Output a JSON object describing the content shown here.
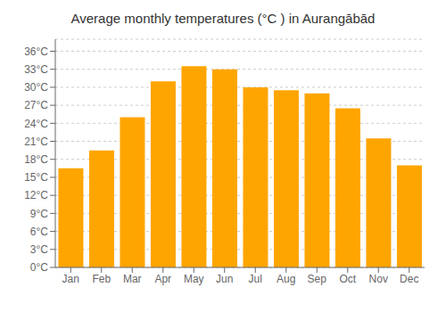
{
  "chart_data": {
    "type": "bar",
    "title": "Average monthly temperatures (°C ) in Aurangābād",
    "categories": [
      "Jan",
      "Feb",
      "Mar",
      "Apr",
      "May",
      "Jun",
      "Jul",
      "Aug",
      "Sep",
      "Oct",
      "Nov",
      "Dec"
    ],
    "values": [
      16.5,
      19.5,
      25.0,
      31.0,
      33.5,
      33.0,
      30.0,
      29.5,
      29.0,
      26.5,
      21.5,
      17.0
    ],
    "color": "#FFA500",
    "ylim": [
      0,
      38
    ],
    "yticks": [
      {
        "value": 0,
        "label": "0°C"
      },
      {
        "value": 3,
        "label": "3°C"
      },
      {
        "value": 6,
        "label": "6°C"
      },
      {
        "value": 9,
        "label": "9°C"
      },
      {
        "value": 12,
        "label": "12°C"
      },
      {
        "value": 15,
        "label": "15°C"
      },
      {
        "value": 18,
        "label": "18°C"
      },
      {
        "value": 21,
        "label": "21°C"
      },
      {
        "value": 24,
        "label": "24°C"
      },
      {
        "value": 27,
        "label": "27°C"
      },
      {
        "value": 30,
        "label": "30°C"
      },
      {
        "value": 33,
        "label": "33°C"
      },
      {
        "value": 36,
        "label": "36°C"
      }
    ],
    "grid": true
  }
}
